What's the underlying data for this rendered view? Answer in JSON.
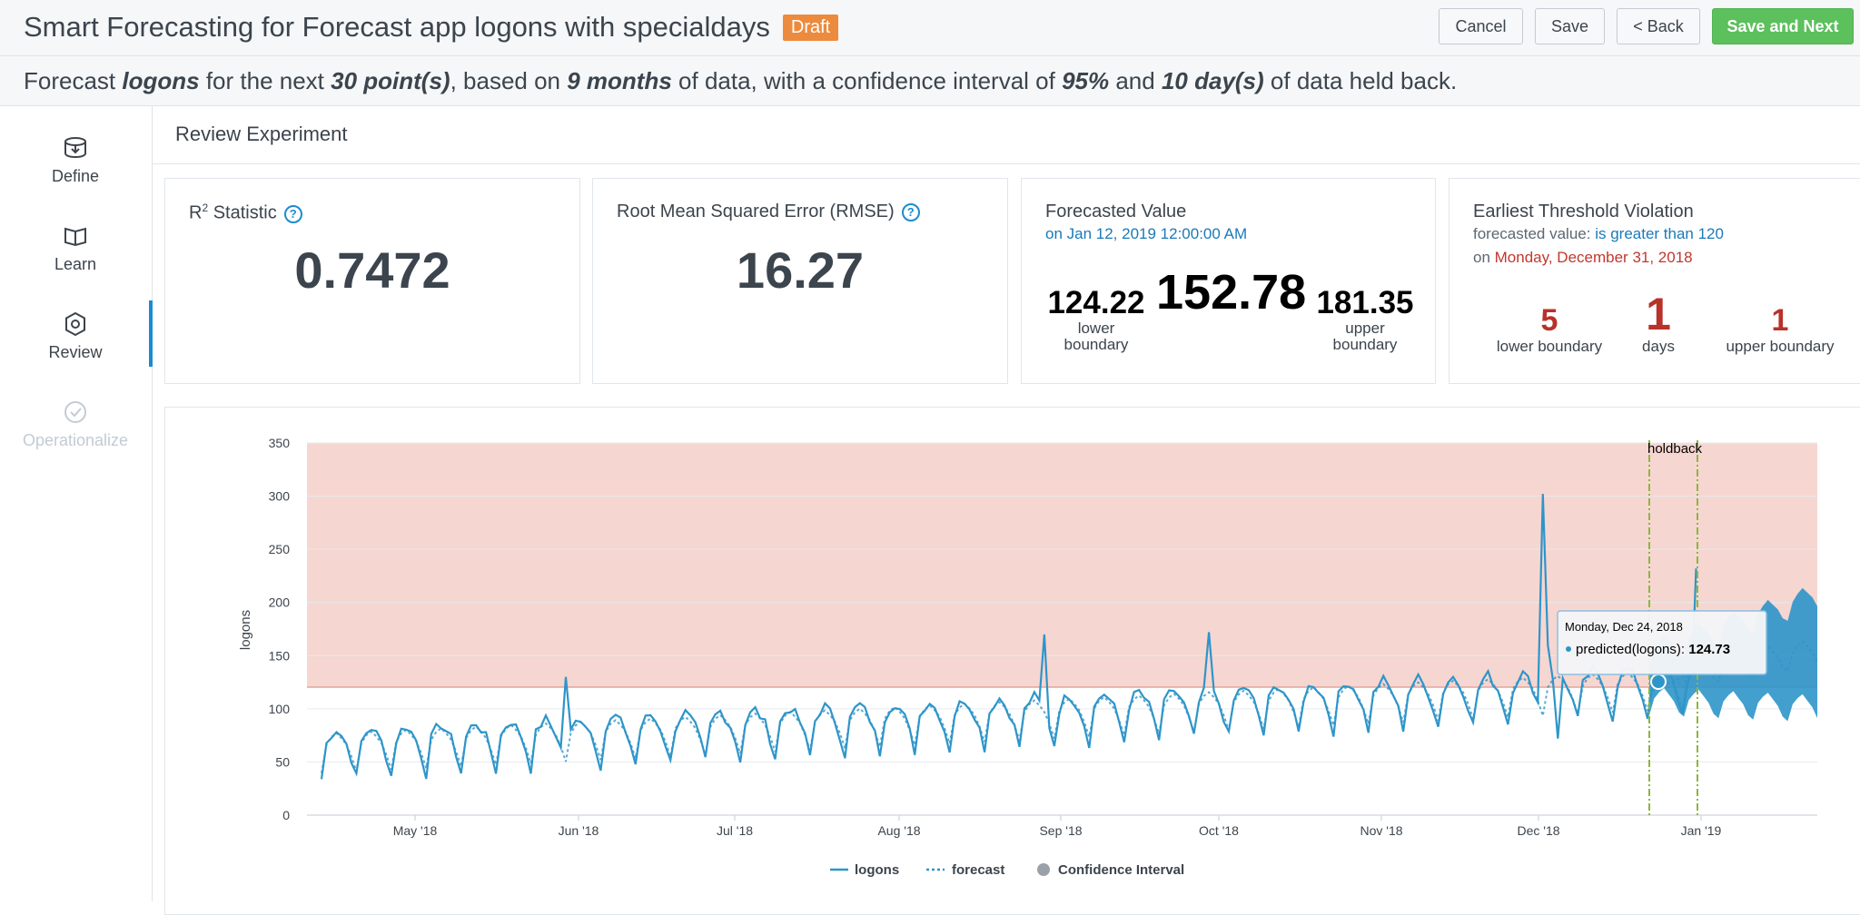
{
  "header": {
    "title": "Smart Forecasting for Forecast app logons with specialdays",
    "badge": "Draft",
    "buttons": {
      "cancel": "Cancel",
      "save": "Save",
      "back": "< Back",
      "save_next": "Save and Next"
    }
  },
  "summary": {
    "p1": "Forecast ",
    "field": "logons",
    "p2": " for the next ",
    "points": "30 point(s)",
    "p3": ", based on ",
    "months": "9 months",
    "p4": " of data, with a confidence interval of ",
    "ci": "95%",
    "p5": " and ",
    "held": "10 day(s)",
    "p6": " of data held back."
  },
  "sidebar": {
    "items": [
      {
        "label": "Define",
        "icon": "database-icon"
      },
      {
        "label": "Learn",
        "icon": "book-icon"
      },
      {
        "label": "Review",
        "icon": "gear-icon"
      },
      {
        "label": "Operationalize",
        "icon": "check-circle-icon"
      }
    ]
  },
  "section": {
    "title": "Review Experiment"
  },
  "cards": {
    "r2": {
      "title": "R",
      "sup": "2",
      "title2": " Statistic",
      "value": "0.7472"
    },
    "rmse": {
      "title": "Root Mean Squared Error (RMSE)",
      "value": "16.27"
    },
    "forecast": {
      "title": "Forecasted Value",
      "subtitle": "on Jan 12, 2019 12:00:00 AM",
      "value": "152.78",
      "lower": "124.22",
      "lower_label_1": "lower",
      "lower_label_2": "boundary",
      "upper": "181.35",
      "upper_label_1": "upper",
      "upper_label_2": "boundary"
    },
    "threshold": {
      "title": "Earliest Threshold Violation",
      "line1_prefix": "forecasted value: ",
      "line1_value": "is greater than 120",
      "line2_prefix": "on ",
      "line2_value": "Monday, December 31, 2018",
      "lower_value": "5",
      "lower_label": "lower boundary",
      "days_value": "1",
      "days_label": "days",
      "upper_value": "1",
      "upper_label": "upper boundary"
    }
  },
  "colors": {
    "accent": "#1a8cd1",
    "series": "#2e95c9",
    "threshold_band": "#f6d6d1",
    "threshold_line": "#e0a59c",
    "holdback": "#8db63d",
    "green": "#5cc05c",
    "draft": "#ec8b3d"
  },
  "chart_data": {
    "type": "line",
    "ylabel": "logons",
    "ylim": [
      0,
      350
    ],
    "yticks": [
      "0",
      "50",
      "100",
      "150",
      "200",
      "250",
      "300",
      "350"
    ],
    "xticks": [
      "May '18",
      "Jun '18",
      "Jul '18",
      "Aug '18",
      "Sep '18",
      "Oct '18",
      "Nov '18",
      "Dec '18",
      "Jan '19"
    ],
    "threshold": 120,
    "holdback_label": "holdback",
    "legend": [
      {
        "name": "logons"
      },
      {
        "name": "forecast"
      },
      {
        "name": "Confidence Interval"
      }
    ],
    "tooltip": {
      "date": "Monday, Dec 24, 2018",
      "label": "predicted(logons): ",
      "value": "124.73"
    }
  }
}
